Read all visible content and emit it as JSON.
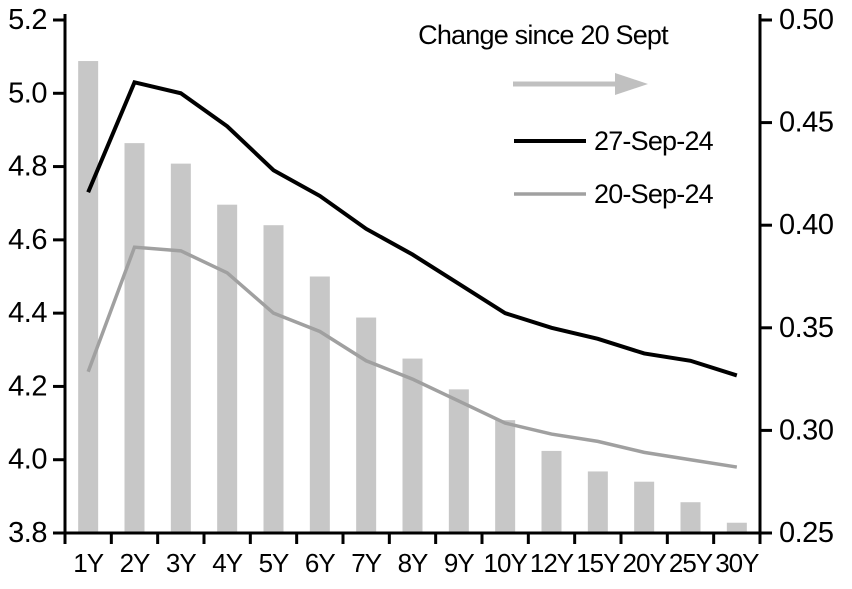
{
  "chart_data": {
    "type": "combo",
    "title": "",
    "categories": [
      "1Y",
      "2Y",
      "3Y",
      "4Y",
      "5Y",
      "6Y",
      "7Y",
      "8Y",
      "9Y",
      "10Y",
      "12Y",
      "15Y",
      "20Y",
      "25Y",
      "30Y"
    ],
    "left_axis": {
      "min": 3.8,
      "max": 5.2,
      "ticks": [
        5.2,
        5.0,
        4.8,
        4.6,
        4.4,
        4.2,
        4.0,
        3.8
      ],
      "tick_labels": [
        "5.2",
        "5.0",
        "4.8",
        "4.6",
        "4.4",
        "4.2",
        "4.0",
        "3.8"
      ]
    },
    "right_axis": {
      "min": 0.25,
      "max": 0.5,
      "ticks": [
        0.5,
        0.45,
        0.4,
        0.35,
        0.3,
        0.25
      ],
      "tick_labels": [
        "0.50",
        "0.45",
        "0.40",
        "0.35",
        "0.30",
        "0.25"
      ]
    },
    "grid": false,
    "series": [
      {
        "name": "Change since 20 Sept",
        "type": "bar",
        "axis": "right",
        "color": "#c7c7c7",
        "values": [
          0.48,
          0.44,
          0.43,
          0.41,
          0.4,
          0.375,
          0.355,
          0.335,
          0.32,
          0.305,
          0.29,
          0.28,
          0.275,
          0.265,
          0.255
        ]
      },
      {
        "name": "27-Sep-24",
        "type": "line",
        "axis": "left",
        "color": "#000000",
        "values": [
          4.73,
          5.03,
          5.0,
          4.91,
          4.79,
          4.72,
          4.63,
          4.56,
          4.48,
          4.4,
          4.36,
          4.33,
          4.29,
          4.27,
          4.23
        ]
      },
      {
        "name": "20-Sep-24",
        "type": "line",
        "axis": "left",
        "color": "#a0a0a0",
        "values": [
          4.24,
          4.58,
          4.57,
          4.51,
          4.4,
          4.35,
          4.27,
          4.22,
          4.16,
          4.1,
          4.07,
          4.05,
          4.02,
          4.0,
          3.98
        ]
      }
    ],
    "legend": {
      "position": "top-right-inside",
      "title": "Change since 20 Sept",
      "arrow_color": "#c0c0c0",
      "entries": [
        {
          "label": "27-Sep-24",
          "color": "#000000"
        },
        {
          "label": "20-Sep-24",
          "color": "#a0a0a0"
        }
      ]
    }
  }
}
